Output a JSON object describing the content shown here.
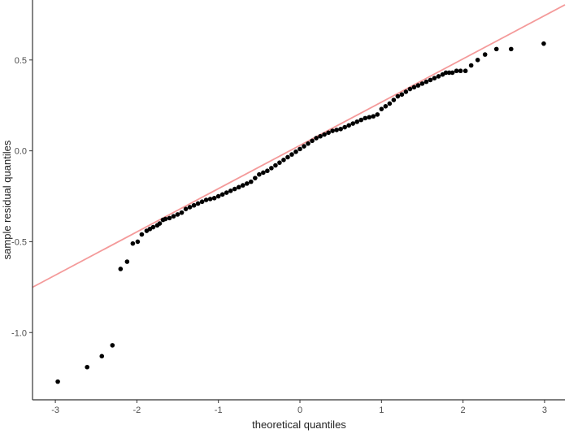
{
  "chart_data": {
    "type": "scatter",
    "title": "",
    "xlabel": "theoretical quantiles",
    "ylabel": "sample residual quantiles",
    "xlim": [
      -3.28,
      3.25
    ],
    "ylim": [
      -1.37,
      0.83
    ],
    "xticks": [
      -3,
      -2,
      -1,
      0,
      1,
      2,
      3
    ],
    "xtick_labels": [
      "-3",
      "-2",
      "-1",
      "0",
      "1",
      "2",
      "3"
    ],
    "yticks": [
      -1.0,
      -0.5,
      0.0,
      0.5
    ],
    "ytick_labels": [
      "-1.0",
      "-0.5",
      "0.0",
      "0.5"
    ],
    "grid": false,
    "reference_line": {
      "intercept": 0.03,
      "slope": 0.238,
      "color": "#f49a9a"
    },
    "point_color": "#000000",
    "points": [
      [
        -2.97,
        -1.27
      ],
      [
        -2.61,
        -1.19
      ],
      [
        -2.43,
        -1.13
      ],
      [
        -2.3,
        -1.07
      ],
      [
        -2.2,
        -0.65
      ],
      [
        -2.12,
        -0.61
      ],
      [
        -2.05,
        -0.51
      ],
      [
        -1.99,
        -0.5
      ],
      [
        -1.94,
        -0.46
      ],
      [
        -1.88,
        -0.44
      ],
      [
        -1.84,
        -0.43
      ],
      [
        -1.8,
        -0.42
      ],
      [
        -1.75,
        -0.41
      ],
      [
        -1.72,
        -0.4
      ],
      [
        -1.68,
        -0.38
      ],
      [
        -1.65,
        -0.375
      ],
      [
        -1.6,
        -0.37
      ],
      [
        -1.55,
        -0.36
      ],
      [
        -1.5,
        -0.35
      ],
      [
        -1.45,
        -0.34
      ],
      [
        -1.4,
        -0.32
      ],
      [
        -1.35,
        -0.31
      ],
      [
        -1.3,
        -0.3
      ],
      [
        -1.25,
        -0.29
      ],
      [
        -1.2,
        -0.28
      ],
      [
        -1.15,
        -0.27
      ],
      [
        -1.1,
        -0.265
      ],
      [
        -1.05,
        -0.26
      ],
      [
        -1.0,
        -0.25
      ],
      [
        -0.95,
        -0.24
      ],
      [
        -0.9,
        -0.23
      ],
      [
        -0.85,
        -0.22
      ],
      [
        -0.8,
        -0.21
      ],
      [
        -0.75,
        -0.2
      ],
      [
        -0.7,
        -0.19
      ],
      [
        -0.65,
        -0.18
      ],
      [
        -0.6,
        -0.17
      ],
      [
        -0.55,
        -0.15
      ],
      [
        -0.5,
        -0.13
      ],
      [
        -0.45,
        -0.12
      ],
      [
        -0.4,
        -0.11
      ],
      [
        -0.35,
        -0.095
      ],
      [
        -0.3,
        -0.08
      ],
      [
        -0.25,
        -0.065
      ],
      [
        -0.2,
        -0.05
      ],
      [
        -0.15,
        -0.035
      ],
      [
        -0.1,
        -0.02
      ],
      [
        -0.05,
        -0.005
      ],
      [
        0.0,
        0.01
      ],
      [
        0.05,
        0.025
      ],
      [
        0.1,
        0.04
      ],
      [
        0.15,
        0.055
      ],
      [
        0.2,
        0.07
      ],
      [
        0.25,
        0.08
      ],
      [
        0.3,
        0.09
      ],
      [
        0.35,
        0.1
      ],
      [
        0.4,
        0.11
      ],
      [
        0.45,
        0.115
      ],
      [
        0.5,
        0.12
      ],
      [
        0.55,
        0.13
      ],
      [
        0.6,
        0.14
      ],
      [
        0.65,
        0.15
      ],
      [
        0.7,
        0.16
      ],
      [
        0.75,
        0.17
      ],
      [
        0.8,
        0.18
      ],
      [
        0.85,
        0.185
      ],
      [
        0.9,
        0.19
      ],
      [
        0.95,
        0.2
      ],
      [
        1.0,
        0.23
      ],
      [
        1.05,
        0.245
      ],
      [
        1.1,
        0.26
      ],
      [
        1.15,
        0.28
      ],
      [
        1.2,
        0.3
      ],
      [
        1.25,
        0.31
      ],
      [
        1.3,
        0.325
      ],
      [
        1.35,
        0.34
      ],
      [
        1.4,
        0.35
      ],
      [
        1.45,
        0.36
      ],
      [
        1.5,
        0.37
      ],
      [
        1.55,
        0.38
      ],
      [
        1.6,
        0.39
      ],
      [
        1.65,
        0.4
      ],
      [
        1.7,
        0.41
      ],
      [
        1.75,
        0.42
      ],
      [
        1.79,
        0.43
      ],
      [
        1.83,
        0.43
      ],
      [
        1.87,
        0.43
      ],
      [
        1.92,
        0.44
      ],
      [
        1.97,
        0.44
      ],
      [
        2.03,
        0.44
      ],
      [
        2.1,
        0.47
      ],
      [
        2.18,
        0.5
      ],
      [
        2.27,
        0.53
      ],
      [
        2.41,
        0.56
      ],
      [
        2.59,
        0.56
      ],
      [
        2.99,
        0.59
      ]
    ]
  }
}
